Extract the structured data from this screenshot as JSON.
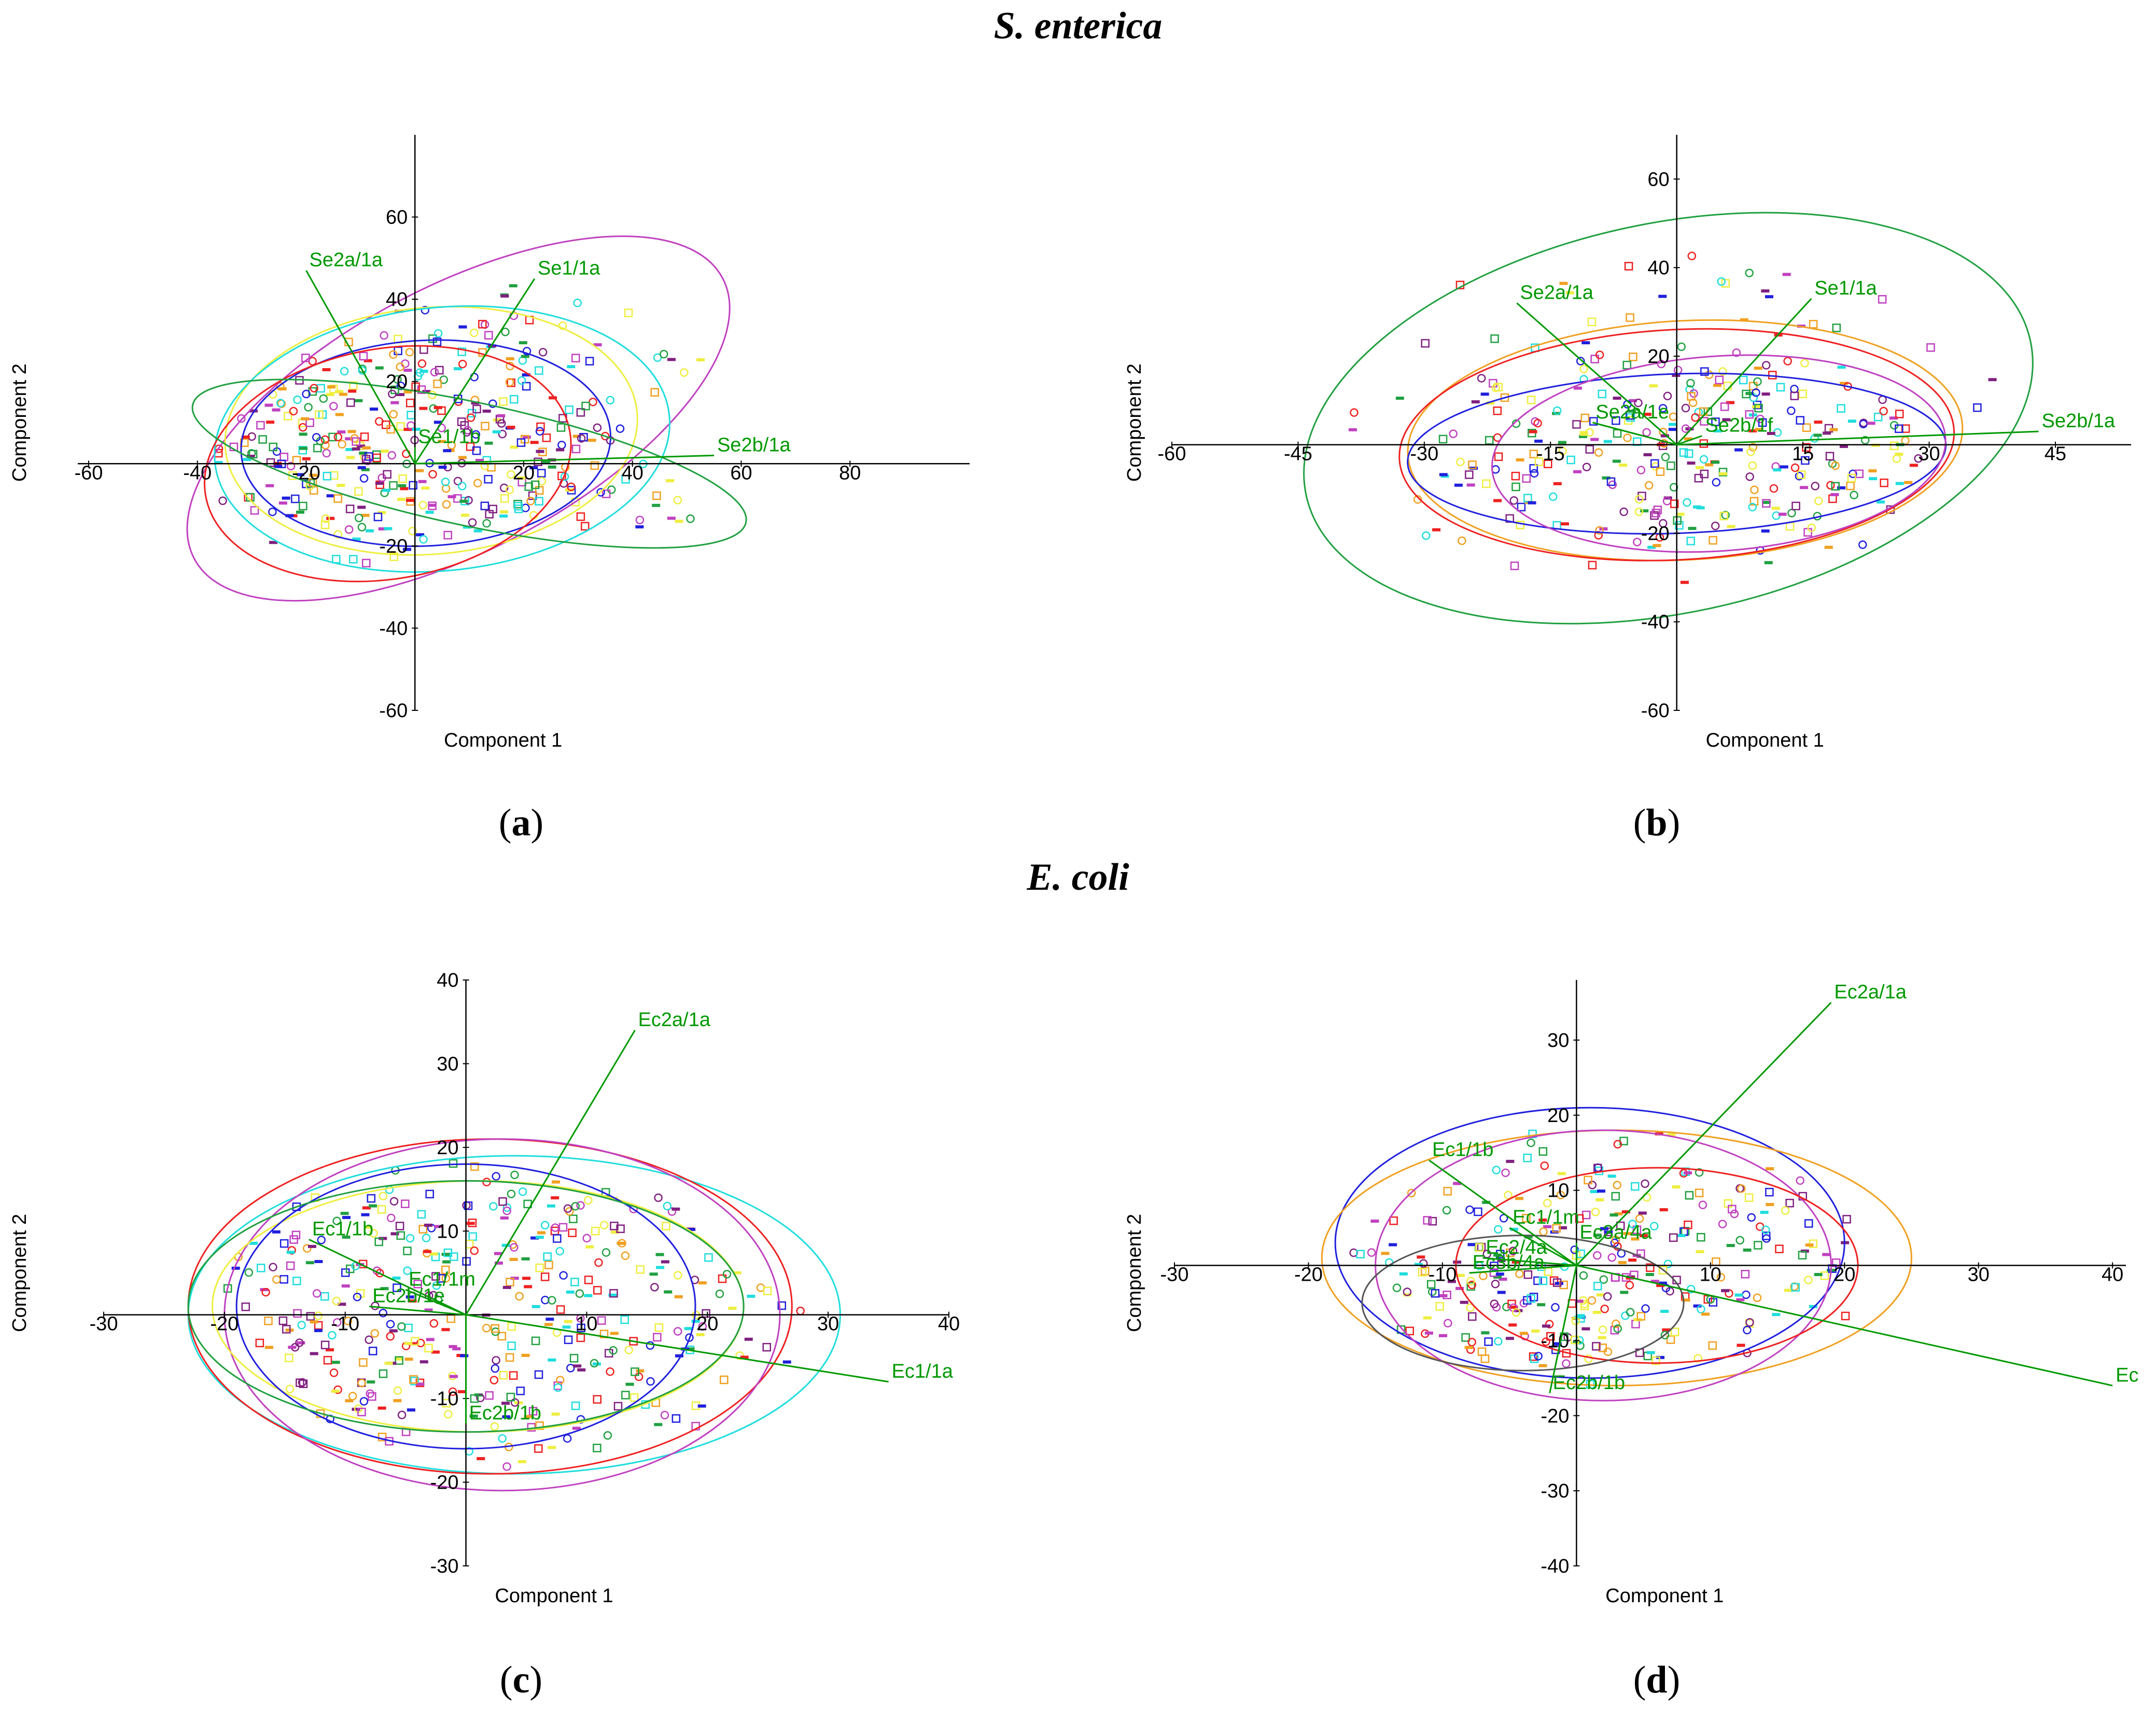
{
  "titles": {
    "top": "S. enterica",
    "bottom": "E. coli"
  },
  "letters": {
    "a": "a",
    "b": "b",
    "c": "c",
    "d": "d"
  },
  "colors": {
    "axis": "#000000",
    "loading": "#009900",
    "blue": "#2020dd",
    "red": "#ee2020",
    "magenta": "#c040c0",
    "yellow": "#eeee40",
    "cyan": "#20dddd",
    "green": "#20a040",
    "orange": "#f0a020",
    "purple": "#802080",
    "dark": "#555555"
  },
  "chart_data": [
    {
      "id": "a",
      "type": "scatter",
      "title": "S. enterica (a)",
      "xlabel": "Component 1",
      "ylabel": "Component 2",
      "xlim": [
        -62,
        102
      ],
      "ylim": [
        -60,
        80
      ],
      "xticks": [
        -60,
        -40,
        -20,
        20,
        40,
        60,
        80
      ],
      "yticks": [
        60,
        40,
        20,
        -20,
        -40,
        -60
      ],
      "loadings": [
        {
          "label": "Se2a/1a",
          "x": -20,
          "y": 47
        },
        {
          "label": "Se1/1a",
          "x": 22,
          "y": 45
        },
        {
          "label": "Se2b/1a",
          "x": 55,
          "y": 2
        },
        {
          "label": "Se1/1b",
          "x": 0,
          "y": 4
        }
      ],
      "ellipses": [
        {
          "cx": 8,
          "cy": 11,
          "rx": 55,
          "ry": 32,
          "angle": -28,
          "color": "magenta"
        },
        {
          "cx": 3,
          "cy": 8,
          "rx": 38,
          "ry": 30,
          "angle": -5,
          "color": "yellow"
        },
        {
          "cx": 5,
          "cy": 6,
          "rx": 42,
          "ry": 32,
          "angle": -6,
          "color": "cyan"
        },
        {
          "cx": 2,
          "cy": 5,
          "rx": 34,
          "ry": 25,
          "angle": -3,
          "color": "blue"
        },
        {
          "cx": -5,
          "cy": 0,
          "rx": 34,
          "ry": 28,
          "angle": -10,
          "color": "red"
        },
        {
          "cx": 10,
          "cy": 0,
          "rx": 52,
          "ry": 15,
          "angle": 12,
          "color": "green"
        }
      ]
    },
    {
      "id": "b",
      "type": "scatter",
      "title": "S. enterica (b)",
      "xlabel": "Component 1",
      "ylabel": "Component 2",
      "xlim": [
        -60,
        54
      ],
      "ylim": [
        -60,
        70
      ],
      "xticks": [
        -60,
        -45,
        -30,
        -15,
        15,
        30,
        45
      ],
      "yticks": [
        60,
        40,
        20,
        -20,
        -40,
        -60
      ],
      "loadings": [
        {
          "label": "Se2a/1a",
          "x": -19,
          "y": 32
        },
        {
          "label": "Se1/1a",
          "x": 16,
          "y": 33
        },
        {
          "label": "Se2b/1a",
          "x": 43,
          "y": 3
        },
        {
          "label": "Se2a/1e",
          "x": -10,
          "y": 5
        },
        {
          "label": "Se2b/1f",
          "x": 3,
          "y": 2
        }
      ],
      "ellipses": [
        {
          "cx": -1,
          "cy": 6,
          "rx": 44,
          "ry": 44,
          "angle": -12,
          "color": "green"
        },
        {
          "cx": 1,
          "cy": 1,
          "rx": 33,
          "ry": 27,
          "angle": -3,
          "color": "orange"
        },
        {
          "cx": 0,
          "cy": 0,
          "rx": 33,
          "ry": 26,
          "angle": -3,
          "color": "red"
        },
        {
          "cx": 0,
          "cy": -2,
          "rx": 32,
          "ry": 18,
          "angle": -2,
          "color": "blue"
        },
        {
          "cx": 5,
          "cy": -2,
          "rx": 27,
          "ry": 22,
          "angle": -4,
          "color": "magenta"
        }
      ]
    },
    {
      "id": "c",
      "type": "scatter",
      "title": "E. coli (c)",
      "xlabel": "Component 1",
      "ylabel": "Component 2",
      "xlim": [
        -30,
        40
      ],
      "ylim": [
        -30,
        40
      ],
      "xticks": [
        -30,
        -20,
        -10,
        10,
        20,
        30,
        40
      ],
      "yticks": [
        40,
        30,
        20,
        10,
        -10,
        -20,
        -30
      ],
      "loadings": [
        {
          "label": "Ec2a/1a",
          "x": 14,
          "y": 34
        },
        {
          "label": "Ec1/1a",
          "x": 35,
          "y": -8
        },
        {
          "label": "Ec1/1b",
          "x": -13,
          "y": 9
        },
        {
          "label": "Ec1/1m",
          "x": -5,
          "y": 3
        },
        {
          "label": "Ec2b/1b",
          "x": 0,
          "y": -13
        },
        {
          "label": "Ec2b/1e",
          "x": -8,
          "y": 1
        }
      ],
      "ellipses": [
        {
          "cx": 4,
          "cy": 0,
          "rx": 27,
          "ry": 19,
          "angle": 0,
          "color": "cyan"
        },
        {
          "cx": 2,
          "cy": 1,
          "rx": 25,
          "ry": 20,
          "angle": 0,
          "color": "red"
        },
        {
          "cx": 3,
          "cy": 0,
          "rx": 23,
          "ry": 21,
          "angle": 0,
          "color": "magenta"
        },
        {
          "cx": 1,
          "cy": 1,
          "rx": 22,
          "ry": 15,
          "angle": 0,
          "color": "yellow"
        },
        {
          "cx": 0,
          "cy": 1,
          "rx": 19,
          "ry": 17,
          "angle": 0,
          "color": "blue"
        },
        {
          "cx": 0,
          "cy": 1,
          "rx": 23,
          "ry": 15,
          "angle": 0,
          "color": "green"
        }
      ]
    },
    {
      "id": "d",
      "type": "scatter",
      "title": "E. coli (d)",
      "xlabel": "Component 1",
      "ylabel": "Component 2",
      "xlim": [
        -30,
        41
      ],
      "ylim": [
        -40,
        38
      ],
      "xticks": [
        -30,
        -20,
        -10,
        10,
        20,
        30,
        40
      ],
      "yticks": [
        30,
        20,
        10,
        -10,
        -20,
        -30,
        -40
      ],
      "loadings": [
        {
          "label": "Ec2a/1a",
          "x": 19,
          "y": 35
        },
        {
          "label": "Ec",
          "x": 40,
          "y": -16
        },
        {
          "label": "Ec1/1b",
          "x": -11,
          "y": 14
        },
        {
          "label": "Ec1/1m",
          "x": -5,
          "y": 5
        },
        {
          "label": "Ec3a/4a",
          "x": 0,
          "y": 3
        },
        {
          "label": "Ec2b/1b",
          "x": -2,
          "y": -17
        },
        {
          "label": "Ec2/4a",
          "x": -7,
          "y": 1
        },
        {
          "label": "Ec3b/4a",
          "x": -8,
          "y": -1
        }
      ],
      "ellipses": [
        {
          "cx": 1,
          "cy": 3,
          "rx": 19,
          "ry": 18,
          "angle": 0,
          "color": "blue"
        },
        {
          "cx": 3,
          "cy": 1,
          "rx": 22,
          "ry": 17,
          "angle": 0,
          "color": "orange"
        },
        {
          "cx": 2,
          "cy": 0,
          "rx": 17,
          "ry": 18,
          "angle": 0,
          "color": "magenta"
        },
        {
          "cx": 6,
          "cy": 0,
          "rx": 15,
          "ry": 13,
          "angle": 0,
          "color": "red"
        },
        {
          "cx": -4,
          "cy": -5,
          "rx": 12,
          "ry": 9,
          "angle": 0,
          "color": "dark"
        }
      ]
    }
  ]
}
